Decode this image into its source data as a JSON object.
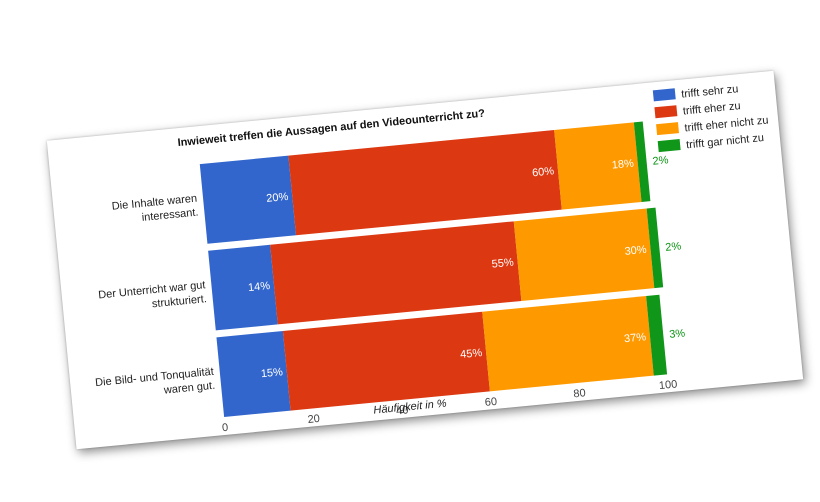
{
  "chart_data": {
    "type": "bar",
    "stacked": true,
    "orientation": "horizontal",
    "title": "Inwieweit treffen die Aussagen auf den Videounterricht zu?",
    "xlabel": "Häufigkeit in %",
    "ylabel": "",
    "xlim": [
      0,
      100
    ],
    "x_ticks": [
      "0",
      "20",
      "40",
      "60",
      "80",
      "100"
    ],
    "categories": [
      "Die Inhalte waren interessant.",
      "Der Unterricht war gut strukturiert.",
      "Die Bild- und Tonqualität waren gut."
    ],
    "category_lines": [
      [
        "Die Inhalte waren",
        "interessant."
      ],
      [
        "Der Unterricht war gut",
        "strukturiert."
      ],
      [
        "Die Bild- und Tonqualität",
        "waren gut."
      ]
    ],
    "series": [
      {
        "name": "trifft sehr zu",
        "color": "#3366cc",
        "values": [
          20,
          14,
          15
        ],
        "labels": [
          "20%",
          "14%",
          "15%"
        ]
      },
      {
        "name": "trifft eher zu",
        "color": "#dc3912",
        "values": [
          60,
          55,
          45
        ],
        "labels": [
          "60%",
          "55%",
          "45%"
        ]
      },
      {
        "name": "trifft eher nicht zu",
        "color": "#ff9900",
        "values": [
          18,
          30,
          37
        ],
        "labels": [
          "18%",
          "30%",
          "37%"
        ]
      },
      {
        "name": "trifft gar nicht zu",
        "color": "#109618",
        "values": [
          2,
          2,
          3
        ],
        "labels": [
          "2%",
          "2%",
          "3%"
        ]
      }
    ],
    "grid": false,
    "legend_position": "right"
  }
}
